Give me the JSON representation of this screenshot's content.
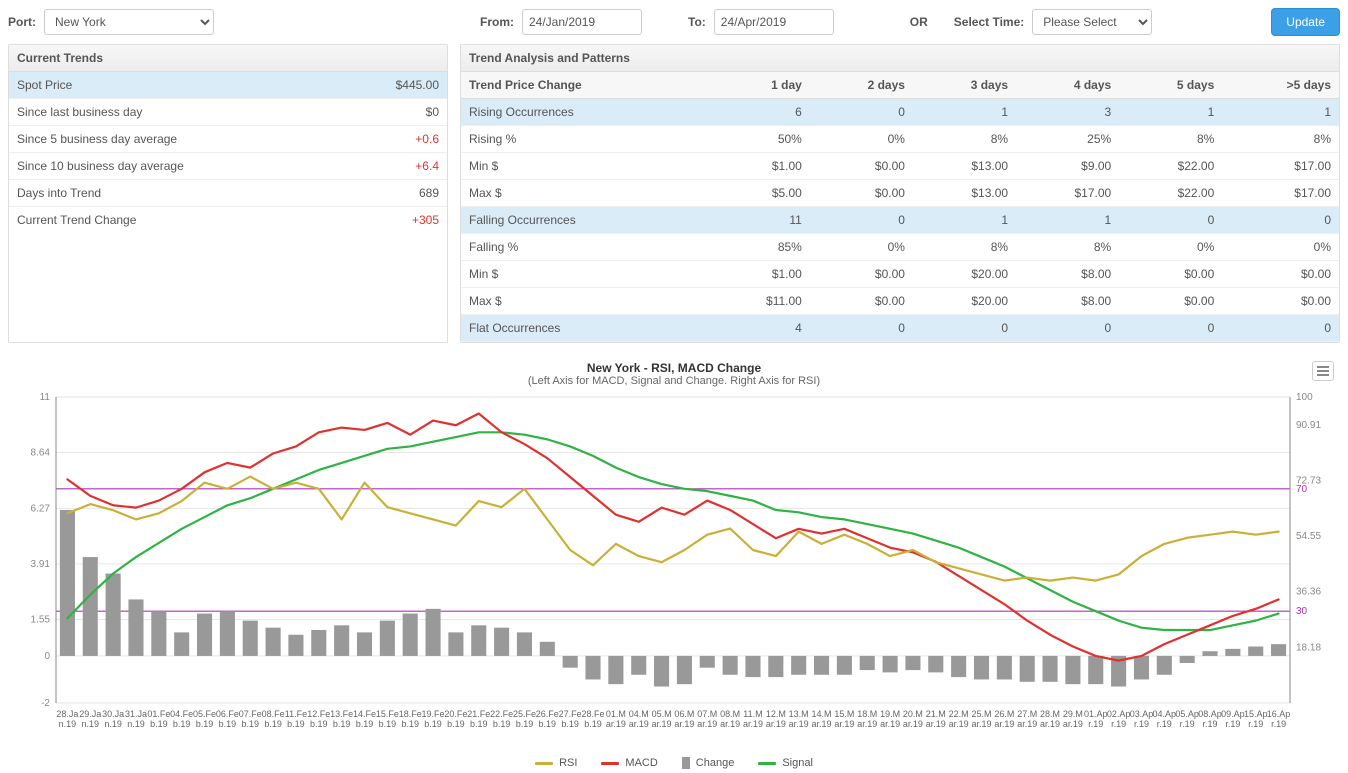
{
  "topbar": {
    "port_label": "Port:",
    "port_value": "New York",
    "from_label": "From:",
    "from_value": "24/Jan/2019",
    "to_label": "To:",
    "to_value": "24/Apr/2019",
    "or_label": "OR",
    "select_time_label": "Select Time:",
    "select_time_value": "Please Select",
    "update_label": "Update"
  },
  "current_trends": {
    "header": "Current Trends",
    "rows": [
      {
        "label": "Spot Price",
        "value": "$445.00",
        "hl": true,
        "red": false
      },
      {
        "label": "Since last business day",
        "value": "$0",
        "hl": false,
        "red": false
      },
      {
        "label": "Since 5 business day average",
        "value": "+0.6",
        "hl": false,
        "red": true
      },
      {
        "label": "Since 10 business day average",
        "value": "+6.4",
        "hl": false,
        "red": true
      },
      {
        "label": "Days into Trend",
        "value": "689",
        "hl": false,
        "red": false
      },
      {
        "label": "Current Trend Change",
        "value": "+305",
        "hl": false,
        "red": true
      }
    ]
  },
  "trend_analysis": {
    "header": "Trend Analysis and Patterns",
    "columns": [
      "Trend Price Change",
      "1 day",
      "2 days",
      "3 days",
      "4 days",
      "5 days",
      ">5 days"
    ],
    "rows": [
      {
        "label": "Rising Occurrences",
        "cells": [
          "6",
          "0",
          "1",
          "3",
          "1",
          "1"
        ],
        "hl": true
      },
      {
        "label": "Rising %",
        "cells": [
          "50%",
          "0%",
          "8%",
          "25%",
          "8%",
          "8%"
        ],
        "hl": false
      },
      {
        "label": "Min $",
        "cells": [
          "$1.00",
          "$0.00",
          "$13.00",
          "$9.00",
          "$22.00",
          "$17.00"
        ],
        "hl": false
      },
      {
        "label": "Max $",
        "cells": [
          "$5.00",
          "$0.00",
          "$13.00",
          "$17.00",
          "$22.00",
          "$17.00"
        ],
        "hl": false
      },
      {
        "label": "Falling Occurrences",
        "cells": [
          "11",
          "0",
          "1",
          "1",
          "0",
          "0"
        ],
        "hl": true
      },
      {
        "label": "Falling %",
        "cells": [
          "85%",
          "0%",
          "8%",
          "8%",
          "0%",
          "0%"
        ],
        "hl": false
      },
      {
        "label": "Min $",
        "cells": [
          "$1.00",
          "$0.00",
          "$20.00",
          "$8.00",
          "$0.00",
          "$0.00"
        ],
        "hl": false
      },
      {
        "label": "Max $",
        "cells": [
          "$11.00",
          "$0.00",
          "$20.00",
          "$8.00",
          "$0.00",
          "$0.00"
        ],
        "hl": false
      },
      {
        "label": "Flat Occurrences",
        "cells": [
          "4",
          "0",
          "0",
          "0",
          "0",
          "0"
        ],
        "hl": true
      }
    ]
  },
  "chart": {
    "title": "New York - RSI, MACD Change",
    "subtitle": "(Left Axis for MACD, Signal and Change. Right Axis for RSI)",
    "colors": {
      "rsi": "#c9b037",
      "macd": "#e03131",
      "signal": "#2fb344",
      "change": "#999999",
      "grid": "#e6e6e6",
      "axis": "#888888",
      "ref70": "#b030c0",
      "ref30": "#b030c0",
      "right_axis_text": "#888888",
      "left_axis_text": "#888888"
    },
    "left_axis": {
      "min": -2,
      "max": 11,
      "ticks": [
        -2,
        0,
        1.55,
        3.91,
        6.27,
        8.64,
        11
      ]
    },
    "right_axis": {
      "min": 0,
      "max": 100,
      "ticks": [
        18.18,
        36.36,
        54.55,
        72.73,
        90.91,
        100
      ],
      "ref_lines": [
        30,
        70
      ]
    },
    "x_labels": [
      "28.Ja n.19",
      "29.Ja n.19",
      "30.Ja n.19",
      "31.Ja n.19",
      "01.Fe b.19",
      "04.Fe b.19",
      "05.Fe b.19",
      "06.Fe b.19",
      "07.Fe b.19",
      "08.Fe b.19",
      "11.Fe b.19",
      "12.Fe b.19",
      "13.Fe b.19",
      "14.Fe b.19",
      "15.Fe b.19",
      "18.Fe b.19",
      "19.Fe b.19",
      "20.Fe b.19",
      "21.Fe b.19",
      "22.Fe b.19",
      "25.Fe b.19",
      "26.Fe b.19",
      "27.Fe b.19",
      "28.Fe b.19",
      "01.M ar.19",
      "04.M ar.19",
      "05.M ar.19",
      "06.M ar.19",
      "07.M ar.19",
      "08.M ar.19",
      "11.M ar.19",
      "12.M ar.19",
      "13.M ar.19",
      "14.M ar.19",
      "15.M ar.19",
      "18.M ar.19",
      "19.M ar.19",
      "20.M ar.19",
      "21.M ar.19",
      "22.M ar.19",
      "25.M ar.19",
      "26.M ar.19",
      "27.M ar.19",
      "28.M ar.19",
      "29.M ar.19",
      "01.Ap r.19",
      "02.Ap r.19",
      "03.Ap r.19",
      "04.Ap r.19",
      "05.Ap r.19",
      "08.Ap r.19",
      "09.Ap r.19",
      "15.Ap r.19",
      "16.Ap r.19"
    ],
    "series": {
      "change": [
        6.2,
        4.2,
        3.5,
        2.4,
        1.9,
        1.0,
        1.8,
        1.9,
        1.5,
        1.2,
        0.9,
        1.1,
        1.3,
        1.0,
        1.5,
        1.8,
        2.0,
        1.0,
        1.3,
        1.2,
        1.0,
        0.6,
        -0.5,
        -1.0,
        -1.2,
        -0.8,
        -1.3,
        -1.2,
        -0.5,
        -0.8,
        -0.9,
        -0.9,
        -0.8,
        -0.8,
        -0.8,
        -0.6,
        -0.7,
        -0.6,
        -0.7,
        -0.9,
        -1.0,
        -1.0,
        -1.1,
        -1.1,
        -1.2,
        -1.2,
        -1.3,
        -1.0,
        -0.8,
        -0.3,
        0.2,
        0.3,
        0.4,
        0.5
      ],
      "rsi": [
        62,
        65,
        63,
        60,
        62,
        66,
        72,
        70,
        74,
        70,
        72,
        70,
        60,
        72,
        64,
        62,
        60,
        58,
        66,
        64,
        70,
        60,
        50,
        45,
        52,
        48,
        46,
        50,
        55,
        57,
        50,
        48,
        56,
        52,
        55,
        52,
        48,
        50,
        46,
        44,
        42,
        40,
        41,
        40,
        41,
        40,
        42,
        48,
        52,
        54,
        55,
        56,
        55,
        56
      ],
      "macd": [
        7.5,
        6.8,
        6.4,
        6.3,
        6.6,
        7.1,
        7.8,
        8.2,
        8.0,
        8.6,
        8.9,
        9.5,
        9.7,
        9.6,
        9.9,
        9.4,
        10.0,
        9.8,
        10.3,
        9.5,
        9.0,
        8.4,
        7.6,
        6.8,
        6.0,
        5.7,
        6.3,
        6.0,
        6.6,
        6.2,
        5.6,
        5.0,
        5.4,
        5.2,
        5.4,
        5.0,
        4.6,
        4.4,
        4.0,
        3.4,
        2.8,
        2.2,
        1.5,
        0.9,
        0.4,
        0.0,
        -0.2,
        0.0,
        0.5,
        0.9,
        1.3,
        1.7,
        2.0,
        2.4
      ],
      "signal": [
        1.6,
        2.6,
        3.5,
        4.2,
        4.8,
        5.4,
        5.9,
        6.4,
        6.7,
        7.1,
        7.5,
        7.9,
        8.2,
        8.5,
        8.8,
        8.9,
        9.1,
        9.3,
        9.5,
        9.5,
        9.4,
        9.2,
        8.9,
        8.5,
        8.0,
        7.6,
        7.3,
        7.1,
        7.0,
        6.8,
        6.6,
        6.2,
        6.1,
        5.9,
        5.8,
        5.6,
        5.4,
        5.2,
        4.9,
        4.6,
        4.2,
        3.8,
        3.3,
        2.8,
        2.3,
        1.9,
        1.5,
        1.2,
        1.1,
        1.1,
        1.1,
        1.3,
        1.5,
        1.8
      ]
    },
    "legend": [
      {
        "label": "RSI",
        "type": "line",
        "color": "#c9b037"
      },
      {
        "label": "MACD",
        "type": "line",
        "color": "#e03131"
      },
      {
        "label": "Change",
        "type": "bar",
        "color": "#999999"
      },
      {
        "label": "Signal",
        "type": "line",
        "color": "#2fb344"
      }
    ]
  }
}
